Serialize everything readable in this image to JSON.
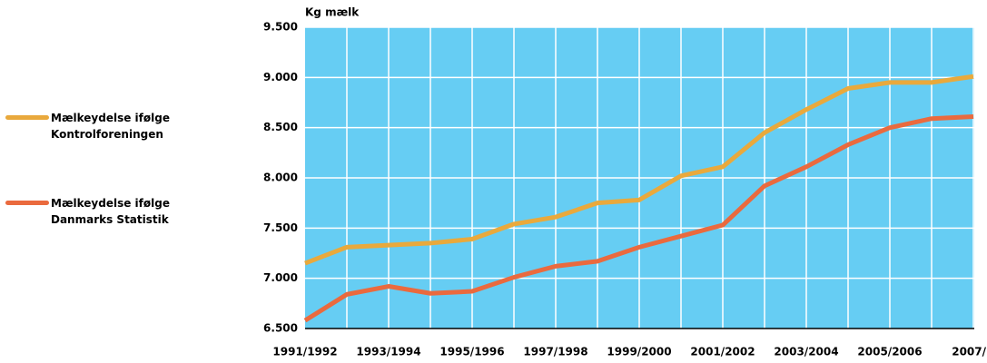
{
  "chart_data": {
    "type": "line",
    "y_label": "Kg mælk",
    "categories": [
      "1991/1992",
      null,
      "1993/1994",
      null,
      "1995/1996",
      null,
      "1997/1998",
      null,
      "1999/2000",
      null,
      "2001/2002",
      null,
      "2003/2004",
      null,
      "2005/2006",
      null,
      "2007/"
    ],
    "series": [
      {
        "name": "Mælkeydelse ifølge Kontrolforeningen",
        "color": "#e9a93c",
        "values": [
          7150,
          7310,
          7330,
          7350,
          7390,
          7540,
          7610,
          7750,
          7780,
          8020,
          8110,
          8450,
          8680,
          8890,
          8950,
          8950,
          9010
        ]
      },
      {
        "name": "Mælkeydelse ifølge Danmarks Statistik",
        "color": "#ea6a3e",
        "values": [
          6580,
          6840,
          6920,
          6850,
          6870,
          7010,
          7120,
          7170,
          7310,
          7420,
          7530,
          7920,
          8110,
          8330,
          8500,
          8590,
          8610
        ]
      }
    ],
    "ylim": [
      6500,
      9500
    ],
    "yticks": [
      {
        "value": 6500,
        "label": "6.500"
      },
      {
        "value": 7000,
        "label": "7.000"
      },
      {
        "value": 7500,
        "label": "7.500"
      },
      {
        "value": 8000,
        "label": "8.000"
      },
      {
        "value": 8500,
        "label": "8.500"
      },
      {
        "value": 9000,
        "label": "9.000"
      },
      {
        "value": 9500,
        "label": "9.500"
      }
    ],
    "grid": true,
    "background": "#66cdf3",
    "legend": "left"
  }
}
